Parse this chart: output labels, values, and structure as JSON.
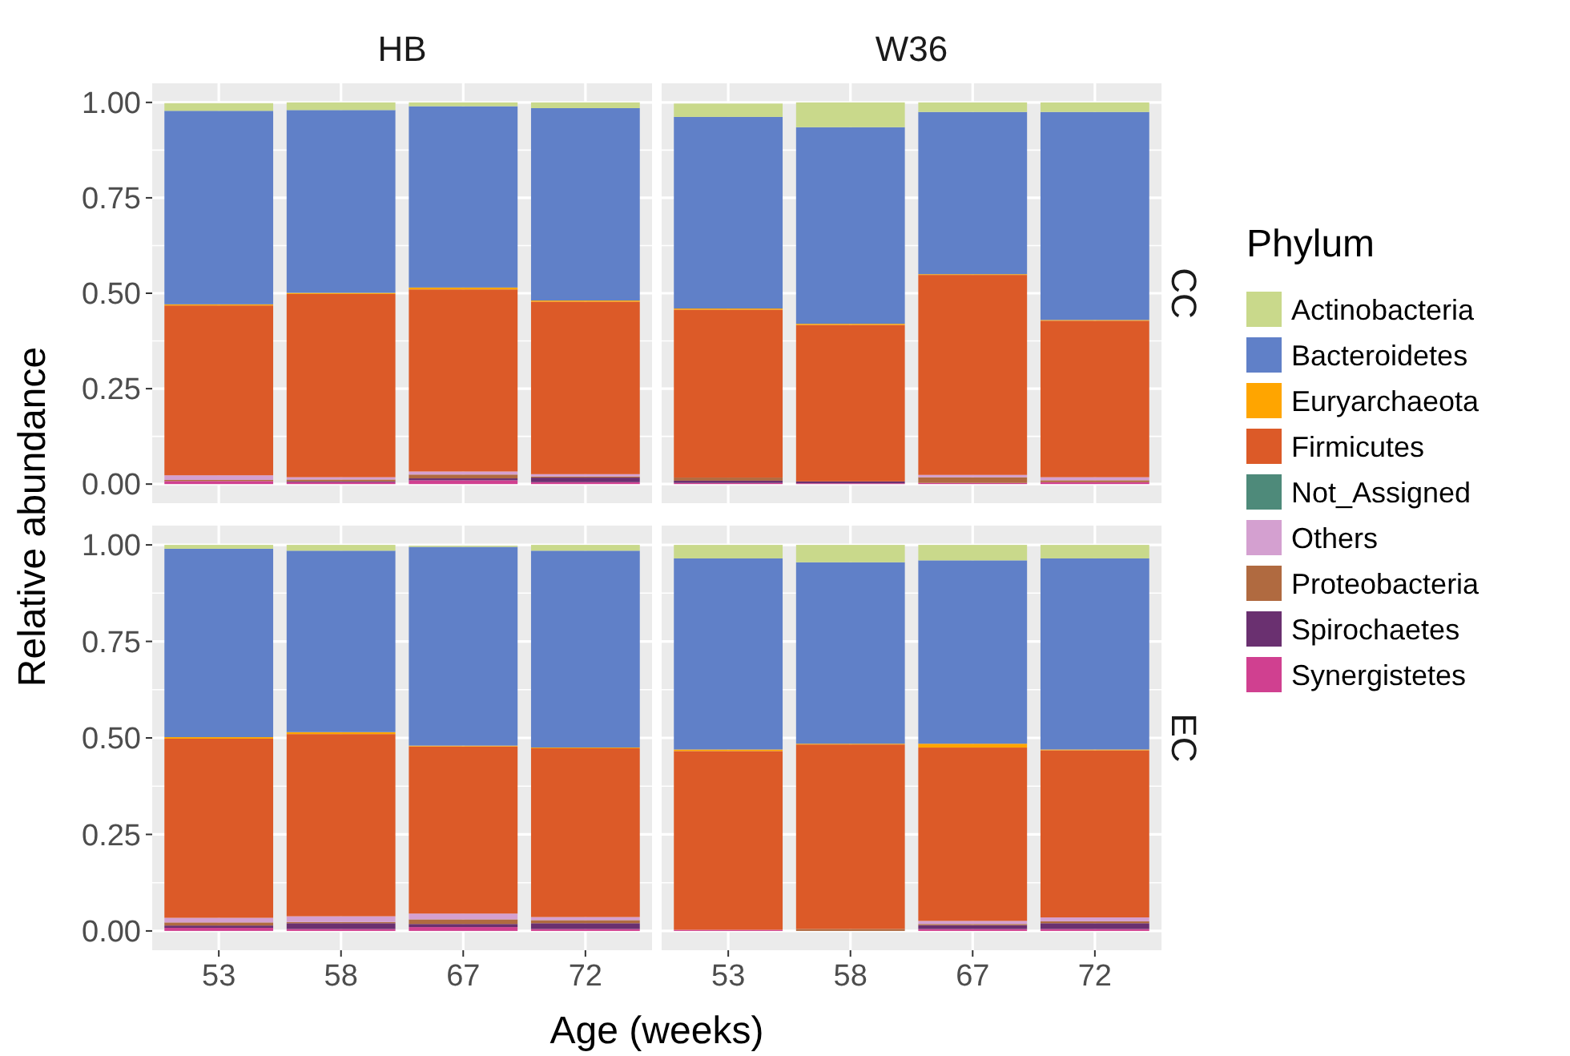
{
  "chart_data": [
    {
      "type": "bar",
      "stacked": true,
      "title": "HB",
      "ylabel": "Relative abundance",
      "categories": [
        "53",
        "58",
        "67",
        "72"
      ],
      "ylim": [
        -0.05,
        1.05
      ],
      "yticks": [
        {
          "value": 0,
          "label": "0.00"
        },
        {
          "value": 0.25,
          "label": "0.25"
        },
        {
          "value": 0.5,
          "label": "0.50"
        },
        {
          "value": 0.75,
          "label": "0.75"
        },
        {
          "value": 1,
          "label": "1.00"
        }
      ],
      "grid": true,
      "tick_labels": "y",
      "series": [
        {
          "color": "#d04090",
          "values": [
            0.008,
            0.005,
            0.01,
            0.005
          ]
        },
        {
          "color": "#6a3070",
          "values": [
            0,
            0.002,
            0.005,
            0.012
          ]
        },
        {
          "color": "#b06a40",
          "values": [
            0.003,
            0.005,
            0.01,
            0.003
          ]
        },
        {
          "color": "#d4a0d0",
          "values": [
            0.012,
            0.006,
            0.008,
            0.006
          ]
        },
        {
          "color": "#4e8a7a",
          "values": [
            0,
            0,
            0,
            0
          ]
        },
        {
          "color": "#dc5a28",
          "values": [
            0.445,
            0.48,
            0.477,
            0.452
          ]
        },
        {
          "color": "#ffa500",
          "values": [
            0.003,
            0.003,
            0.005,
            0.003
          ]
        },
        {
          "color": "#6080c8",
          "values": [
            0.507,
            0.479,
            0.475,
            0.504
          ]
        },
        {
          "color": "#c9d98b",
          "values": [
            0.02,
            0.02,
            0.01,
            0.015
          ]
        }
      ]
    },
    {
      "type": "bar",
      "stacked": true,
      "title": "W36",
      "annotations": [
        "CC"
      ],
      "legend": "right",
      "legend_title": "Phylum",
      "categories": [
        "53",
        "58",
        "67",
        "72"
      ],
      "ylim": [
        -0.05,
        1.05
      ],
      "yticks": [
        0,
        0.25,
        0.5,
        0.75,
        1
      ],
      "grid": true,
      "tick_labels": false,
      "series": [
        {
          "name": "Synergistetes",
          "color": "#d04090",
          "values": [
            0.003,
            0.002,
            0.003,
            0.005
          ]
        },
        {
          "name": "Spirochaetes",
          "color": "#6a3070",
          "values": [
            0.006,
            0.005,
            0,
            0
          ]
        },
        {
          "name": "Proteobacteria",
          "color": "#b06a40",
          "values": [
            0.008,
            0,
            0.015,
            0.005
          ]
        },
        {
          "name": "Others",
          "color": "#d4a0d0",
          "values": [
            0,
            0,
            0.006,
            0.008
          ]
        },
        {
          "name": "Not_Assigned",
          "color": "#4e8a7a",
          "values": [
            0,
            0,
            0,
            0
          ]
        },
        {
          "name": "Firmicutes",
          "color": "#dc5a28",
          "values": [
            0.44,
            0.41,
            0.524,
            0.41
          ]
        },
        {
          "name": "Euryarchaeota",
          "color": "#ffa500",
          "values": [
            0.003,
            0.003,
            0.002,
            0.002
          ]
        },
        {
          "name": "Bacteroidetes",
          "color": "#6080c8",
          "values": [
            0.502,
            0.515,
            0.425,
            0.545
          ]
        },
        {
          "name": "Actinobacteria",
          "color": "#c9d98b",
          "values": [
            0.035,
            0.065,
            0.025,
            0.025
          ]
        }
      ]
    },
    {
      "type": "bar",
      "stacked": true,
      "xlabel": "Age (weeks)",
      "categories": [
        "53",
        "58",
        "67",
        "72"
      ],
      "ylim": [
        -0.05,
        1.05
      ],
      "yticks": [
        {
          "value": 0,
          "label": "0.00"
        },
        {
          "value": 0.25,
          "label": "0.25"
        },
        {
          "value": 0.5,
          "label": "0.50"
        },
        {
          "value": 0.75,
          "label": "0.75"
        },
        {
          "value": 1,
          "label": "1.00"
        }
      ],
      "grid": true,
      "series": [
        {
          "color": "#d04090",
          "values": [
            0.008,
            0.005,
            0.01,
            0.005
          ]
        },
        {
          "color": "#6a3070",
          "values": [
            0.006,
            0.015,
            0.008,
            0.015
          ]
        },
        {
          "color": "#b06a40",
          "values": [
            0.008,
            0.003,
            0.012,
            0.008
          ]
        },
        {
          "color": "#d4a0d0",
          "values": [
            0.012,
            0.015,
            0.015,
            0.008
          ]
        },
        {
          "color": "#4e8a7a",
          "values": [
            0,
            0,
            0,
            0
          ]
        },
        {
          "color": "#dc5a28",
          "values": [
            0.464,
            0.472,
            0.433,
            0.437
          ]
        },
        {
          "color": "#ffa500",
          "values": [
            0.004,
            0.005,
            0.002,
            0.002
          ]
        },
        {
          "color": "#6080c8",
          "values": [
            0.488,
            0.47,
            0.515,
            0.51
          ]
        },
        {
          "color": "#c9d98b",
          "values": [
            0.01,
            0.015,
            0.003,
            0.015
          ]
        }
      ]
    },
    {
      "type": "bar",
      "stacked": true,
      "annotations": [
        "EC"
      ],
      "categories": [
        "53",
        "58",
        "67",
        "72"
      ],
      "ylim": [
        -0.05,
        1.05
      ],
      "yticks": [
        0,
        0.25,
        0.5,
        0.75,
        1
      ],
      "grid": true,
      "tick_labels": "x",
      "series": [
        {
          "color": "#d04090",
          "values": [
            0.003,
            0,
            0.005,
            0.005
          ]
        },
        {
          "color": "#6a3070",
          "values": [
            0,
            0,
            0.01,
            0.015
          ]
        },
        {
          "color": "#b06a40",
          "values": [
            0,
            0.005,
            0.003,
            0.005
          ]
        },
        {
          "color": "#d4a0d0",
          "values": [
            0,
            0,
            0.008,
            0.01
          ]
        },
        {
          "color": "#4e8a7a",
          "values": [
            0,
            0,
            0,
            0
          ]
        },
        {
          "color": "#dc5a28",
          "values": [
            0.463,
            0.478,
            0.449,
            0.433
          ]
        },
        {
          "color": "#ffa500",
          "values": [
            0.004,
            0.002,
            0.01,
            0.002
          ]
        },
        {
          "color": "#6080c8",
          "values": [
            0.495,
            0.47,
            0.475,
            0.495
          ]
        },
        {
          "color": "#c9d98b",
          "values": [
            0.035,
            0.045,
            0.04,
            0.035
          ]
        }
      ]
    }
  ]
}
